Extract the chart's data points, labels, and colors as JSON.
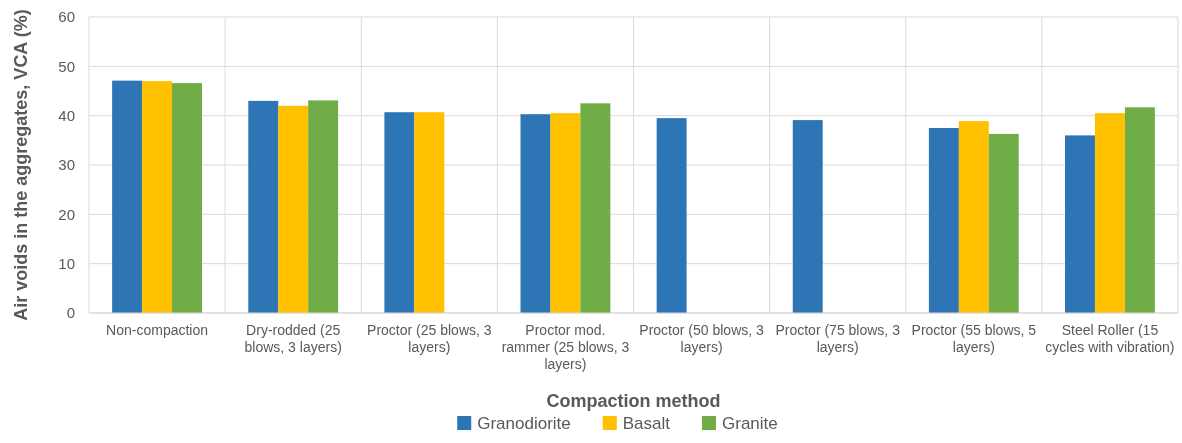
{
  "chart_data": {
    "type": "bar",
    "xlabel": "Compaction method",
    "ylabel": "Air voids in the aggregates, VCA (%)",
    "categories": [
      "Non-compaction",
      "Dry-rodded (25 blows, 3 layers)",
      "Proctor (25 blows, 3 layers)",
      "Proctor mod. rammer (25 blows, 3 layers)",
      "Proctor (50 blows, 3 layers)",
      "Proctor (75 blows, 3 layers)",
      "Proctor (55 blows, 5 layers)",
      "Steel Roller (15 cycles with vibration)"
    ],
    "series": [
      {
        "name": "Granodiorite",
        "color": "#2e75b6",
        "values": [
          47.1,
          43.0,
          40.7,
          40.3,
          39.5,
          39.1,
          37.5,
          36.0
        ]
      },
      {
        "name": "Basalt",
        "color": "#ffc000",
        "values": [
          47.0,
          42.0,
          40.7,
          40.5,
          null,
          null,
          38.9,
          40.5
        ]
      },
      {
        "name": "Granite",
        "color": "#70ad47",
        "values": [
          46.6,
          43.1,
          null,
          42.5,
          null,
          null,
          36.3,
          41.7
        ]
      }
    ],
    "ylim": [
      0,
      60
    ],
    "yticks": [
      0,
      10,
      20,
      30,
      40,
      50,
      60
    ],
    "grid": true,
    "legend": "bottom"
  }
}
